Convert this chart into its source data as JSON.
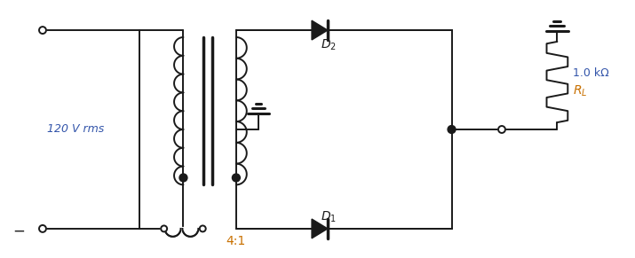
{
  "bg_color": "#ffffff",
  "line_color": "#1a1a1a",
  "orange_color": "#c87000",
  "blue_color": "#3355aa",
  "fig_width": 7.15,
  "fig_height": 2.91,
  "label_120": "120 V rms",
  "label_ratio": "4:1",
  "label_D1": "$D_1$",
  "label_D2": "$D_2$",
  "label_RL": "$R_L$",
  "label_RL2": "1.0 kΩ"
}
